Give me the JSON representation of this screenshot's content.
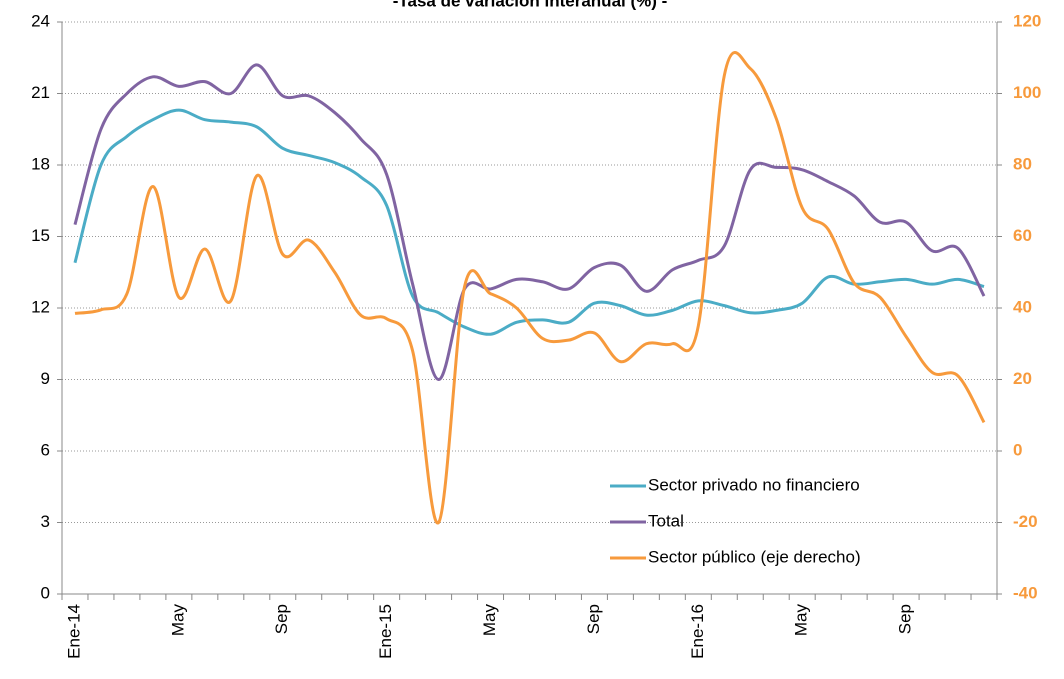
{
  "chart_data": {
    "type": "line",
    "title": "-Tasa de variación interanual (%) -",
    "categories": [
      "Ene-14",
      null,
      null,
      null,
      "May",
      null,
      null,
      null,
      "Sep",
      null,
      null,
      null,
      "Ene-15",
      null,
      null,
      null,
      "May",
      null,
      null,
      null,
      "Sep",
      null,
      null,
      null,
      "Ene-16",
      null,
      null,
      null,
      "May",
      null,
      null,
      null,
      "Sep",
      null,
      null,
      null
    ],
    "series": [
      {
        "name": "Sector privado no financiero",
        "color": "#4bacc6",
        "values": [
          13.9,
          18.0,
          19.2,
          19.9,
          20.3,
          19.9,
          19.8,
          19.6,
          18.7,
          18.4,
          18.1,
          17.5,
          16.3,
          12.5,
          11.8,
          11.2,
          10.9,
          11.4,
          11.5,
          11.4,
          12.2,
          12.1,
          11.7,
          11.9,
          12.3,
          12.1,
          11.8,
          11.9,
          12.2,
          13.3,
          13.0,
          13.1,
          13.2,
          13.0,
          13.2,
          12.9
        ]
      },
      {
        "name": "Total",
        "color": "#8064a2",
        "values": [
          15.5,
          19.5,
          21.0,
          21.7,
          21.3,
          21.5,
          21.0,
          22.2,
          20.9,
          20.9,
          20.2,
          19.1,
          17.6,
          13.0,
          9.0,
          12.8,
          12.8,
          13.2,
          13.1,
          12.8,
          13.7,
          13.8,
          12.7,
          13.6,
          14.0,
          14.6,
          17.8,
          17.9,
          17.8,
          17.3,
          16.7,
          15.6,
          15.6,
          14.4,
          14.5,
          12.5
        ]
      },
      {
        "name": "Sector público (eje derecho)",
        "color": "#f79a3c",
        "axis": "y2",
        "values": [
          38.5,
          39.5,
          44,
          74,
          43,
          56.5,
          42,
          77,
          55,
          59,
          50,
          38,
          37,
          28,
          -20,
          46,
          44,
          40,
          31.5,
          31,
          33,
          25,
          30,
          30,
          35,
          105,
          107,
          93,
          68,
          62,
          47,
          43,
          32,
          22,
          21,
          8
        ]
      }
    ],
    "ylim": [
      0,
      24
    ],
    "yticks": [
      0,
      3,
      6,
      9,
      12,
      15,
      18,
      21,
      24
    ],
    "y2lim": [
      -40,
      120
    ],
    "y2ticks": [
      -40,
      -20,
      0,
      20,
      40,
      60,
      80,
      100,
      120
    ],
    "grid": true,
    "legend": "lower right"
  }
}
